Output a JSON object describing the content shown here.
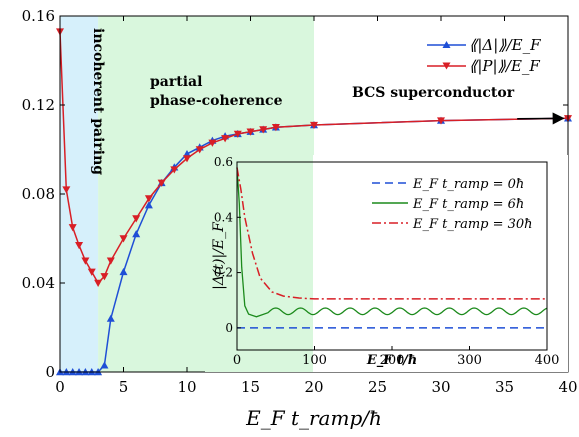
{
  "chart_data": [
    {
      "type": "line",
      "xlabel": "E_F t_ramp/ħ",
      "ylabel": "",
      "xlim": [
        0,
        40
      ],
      "ylim": [
        0,
        0.16
      ],
      "xticks": [
        "0",
        "5",
        "10",
        "15",
        "20",
        "25",
        "30",
        "35",
        "40"
      ],
      "yticks": [
        "0",
        "0.04",
        "0.08",
        "0.12",
        "0.16"
      ],
      "legend": "top-right",
      "regions": [
        {
          "label": "incoherent pairing",
          "x": [
            0,
            3
          ],
          "color": "#d6f0fb"
        },
        {
          "label": "partial phase-coherence",
          "x": [
            3,
            20
          ],
          "color": "#d9f7dd"
        },
        {
          "label": "BCS superconductor",
          "x": [
            20,
            40
          ],
          "color": "#ffffff"
        }
      ],
      "region_labels": [
        "incoherent pairing",
        "partial",
        "phase-coherence",
        "BCS superconductor"
      ],
      "series": [
        {
          "name": "⟪|Δ|⟫/E_F",
          "color": "#1f4fd6",
          "marker": "triangle-up",
          "x": [
            0,
            0.5,
            1,
            1.5,
            2,
            2.5,
            3,
            3.5,
            4,
            5,
            6,
            7,
            8,
            9,
            10,
            11,
            12,
            13,
            14,
            15,
            16,
            17,
            20,
            30,
            40
          ],
          "y": [
            0,
            0,
            0,
            0,
            0,
            0,
            0,
            0.003,
            0.024,
            0.045,
            0.062,
            0.075,
            0.085,
            0.092,
            0.098,
            0.101,
            0.104,
            0.106,
            0.107,
            0.108,
            0.109,
            0.11,
            0.111,
            0.113,
            0.114
          ]
        },
        {
          "name": "⟪|P|⟫/E_F",
          "color": "#d81f26",
          "marker": "triangle-down",
          "x": [
            0,
            0.5,
            1,
            1.5,
            2,
            2.5,
            3,
            3.5,
            4,
            5,
            6,
            7,
            8,
            9,
            10,
            11,
            12,
            13,
            14,
            15,
            16,
            17,
            20,
            30,
            40
          ],
          "y": [
            0.153,
            0.082,
            0.065,
            0.057,
            0.05,
            0.045,
            0.04,
            0.043,
            0.05,
            0.06,
            0.069,
            0.078,
            0.085,
            0.091,
            0.096,
            0.1,
            0.103,
            0.105,
            0.107,
            0.108,
            0.109,
            0.11,
            0.111,
            0.113,
            0.114
          ]
        }
      ],
      "annotation": "arrow pointing right along upper branch toward x = 40"
    },
    {
      "type": "line",
      "xlabel": "E_F t/ħ",
      "ylabel": "|Δ(t)|/E_F",
      "xlim": [
        0,
        400
      ],
      "ylim": [
        -0.08,
        0.6
      ],
      "xticks": [
        "0",
        "100",
        "200",
        "300",
        "400"
      ],
      "yticks": [
        "0",
        "0.2",
        "0.4",
        "0.6"
      ],
      "legend": "top-right",
      "series": [
        {
          "name": "E_F t_ramp = 0ħ",
          "color": "#1f4fd6",
          "style": "dashed",
          "x": [
            0,
            400
          ],
          "y": [
            0,
            0
          ]
        },
        {
          "name": "E_F t_ramp = 6ħ",
          "color": "#1c8a1c",
          "style": "solid",
          "x": [
            0,
            3,
            6,
            10,
            15,
            25,
            40,
            60,
            400
          ],
          "y": [
            0.58,
            0.45,
            0.22,
            0.08,
            0.05,
            0.04,
            0.055,
            0.06,
            0.06
          ]
        },
        {
          "name": "E_F t_ramp = 30ħ",
          "color": "#d81f26",
          "style": "dashdot",
          "x": [
            0,
            5,
            10,
            20,
            30,
            45,
            60,
            80,
            100,
            400
          ],
          "y": [
            0.58,
            0.5,
            0.4,
            0.27,
            0.18,
            0.13,
            0.115,
            0.108,
            0.105,
            0.105
          ]
        }
      ]
    }
  ]
}
